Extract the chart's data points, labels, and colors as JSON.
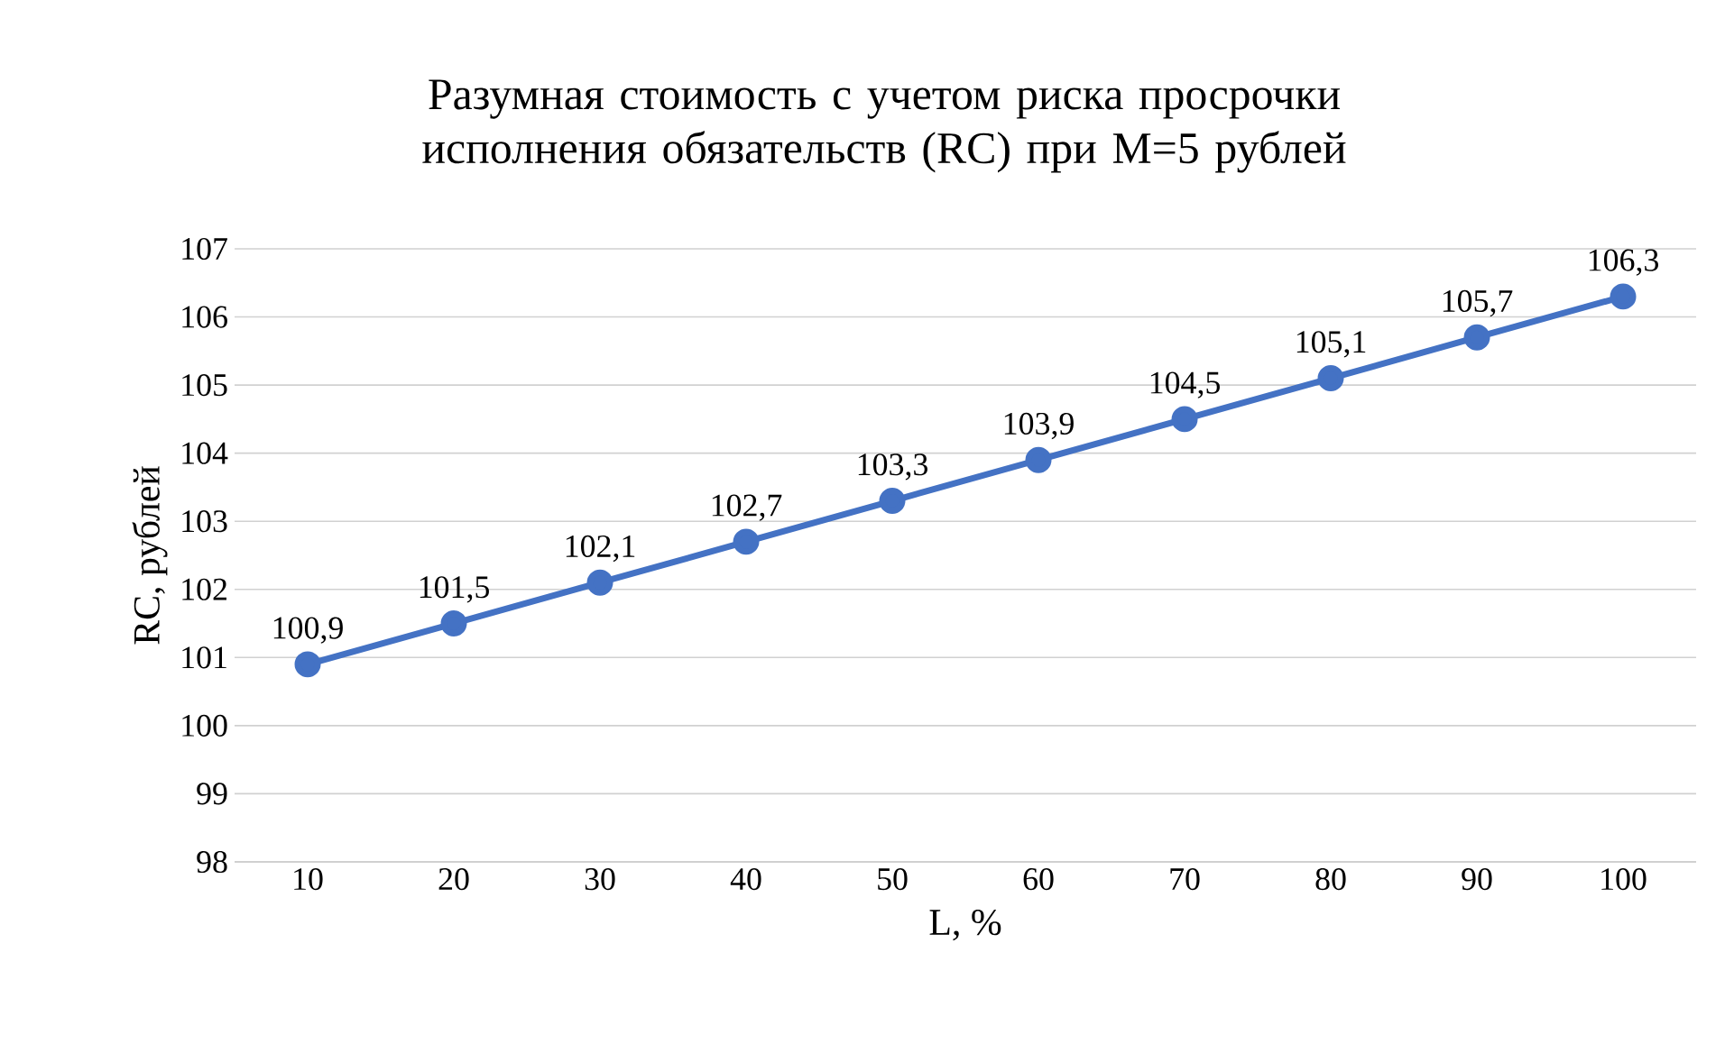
{
  "chart_data": {
    "type": "line",
    "title": "Разумная стоимость с учетом риска просрочки исполнения обязательств (RC) при M=5 рублей",
    "xlabel": "L, %",
    "ylabel": "RC, рублей",
    "categories": [
      "10",
      "20",
      "30",
      "40",
      "50",
      "60",
      "70",
      "80",
      "90",
      "100"
    ],
    "values": [
      100.9,
      101.5,
      102.1,
      102.7,
      103.3,
      103.9,
      104.5,
      105.1,
      105.7,
      106.3
    ],
    "value_labels": [
      "100,9",
      "101,5",
      "102,1",
      "102,7",
      "103,3",
      "103,9",
      "104,5",
      "105,1",
      "105,7",
      "106,3"
    ],
    "color": "#4472c4",
    "marker": "circle",
    "line_style": "solid",
    "ylim": [
      98,
      107
    ],
    "yticks": [
      98,
      99,
      100,
      101,
      102,
      103,
      104,
      105,
      106,
      107
    ],
    "grid": "y"
  }
}
